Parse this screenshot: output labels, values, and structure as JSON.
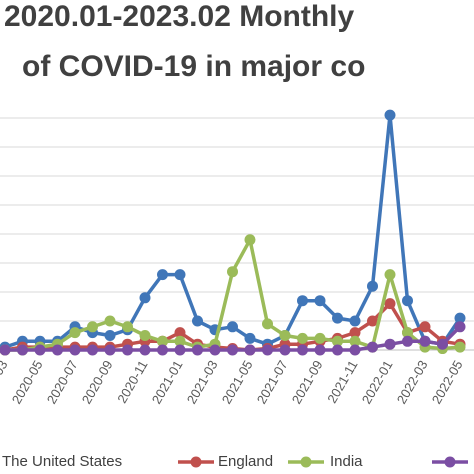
{
  "chart_data": {
    "type": "line",
    "title_lines": [
      "2020.01-2023.02 Monthly",
      "of COVID-19 in major co"
    ],
    "categories": [
      "2020-03",
      null,
      "2020-05",
      null,
      "2020-07",
      null,
      "2020-09",
      null,
      "2020-11",
      null,
      "2021-01",
      null,
      "2021-03",
      null,
      "2021-05",
      null,
      "2021-07",
      null,
      "2021-09",
      null,
      "2021-11",
      null,
      "2022-01",
      null,
      "2022-03",
      null,
      "2022-05"
    ],
    "ylim": [
      0,
      8.3
    ],
    "yticks": [
      0,
      1,
      2,
      3,
      4,
      5,
      6,
      7,
      8
    ],
    "grid": true,
    "legend": "bottom",
    "series": [
      {
        "name": "The United States",
        "color": "#4076b8",
        "values": [
          0.1,
          0.3,
          0.3,
          0.3,
          0.8,
          0.6,
          0.5,
          0.7,
          1.8,
          2.6,
          2.6,
          1.0,
          0.7,
          0.8,
          0.4,
          0.2,
          0.5,
          1.7,
          1.7,
          1.1,
          1.0,
          2.2,
          8.1,
          1.7,
          0.3,
          0.2,
          1.1
        ]
      },
      {
        "name": "England",
        "color": "#c0504d",
        "values": [
          0,
          0.1,
          0.1,
          0.1,
          0.1,
          0.1,
          0.1,
          0.2,
          0.3,
          0.3,
          0.6,
          0.2,
          0.1,
          0.05,
          0,
          0.05,
          0.2,
          0.2,
          0.3,
          0.4,
          0.6,
          1.0,
          1.6,
          0.6,
          0.8,
          0.3,
          0.2
        ]
      },
      {
        "name": "India",
        "color": "#9bbb59",
        "values": [
          0,
          0,
          0.1,
          0.2,
          0.6,
          0.8,
          1.0,
          0.8,
          0.5,
          0.3,
          0.3,
          0.1,
          0.2,
          2.7,
          3.8,
          0.9,
          0.5,
          0.4,
          0.4,
          0.3,
          0.3,
          0.1,
          2.6,
          0.6,
          0.1,
          0.05,
          0.1
        ]
      },
      {
        "color": "#7b4ea3",
        "values": [
          0,
          0,
          0,
          0,
          0,
          0,
          0,
          0,
          0,
          0,
          0,
          0,
          0,
          0,
          0,
          0,
          0,
          0,
          0,
          0,
          0,
          0.1,
          0.2,
          0.3,
          0.3,
          0.2,
          0.8
        ]
      }
    ]
  }
}
